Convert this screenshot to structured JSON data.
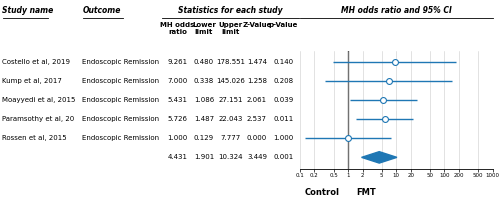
{
  "chart_data": {
    "type": "forest",
    "column_groups": [
      "Study name",
      "Outcome",
      "Statistics for each study",
      "MH odds ratio and 95% CI"
    ],
    "columns": [
      "MH odds\nratio",
      "Lower\nlimit",
      "Upper\nlimit",
      "Z-Value",
      "p-Value"
    ],
    "categories": [
      "Costello et al, 2019",
      "Kump et al, 2017",
      "Moayyedi et al, 2015",
      "Paramsothy et al, 20",
      "Rossen et al, 2015"
    ],
    "outcomes": [
      "Endoscopic Remission",
      "Endoscopic Remission",
      "Endoscopic Remission",
      "Endoscopic Remission",
      "Endoscopic Remission"
    ],
    "values": [
      9.261,
      7.0,
      5.431,
      5.726,
      1.0
    ],
    "lower": [
      0.48,
      0.338,
      1.086,
      1.487,
      0.129
    ],
    "upper": [
      178.551,
      145.026,
      27.151,
      22.043,
      7.777
    ],
    "z": [
      1.474,
      1.258,
      2.061,
      2.537,
      0.0
    ],
    "p": [
      0.14,
      0.208,
      0.039,
      0.011,
      1.0
    ],
    "summary": {
      "values": 4.431,
      "lower": 1.901,
      "upper": 10.324,
      "z": 3.449,
      "p": 0.001
    },
    "reference_x": 1,
    "direction_labels": [
      "Control",
      "FMT"
    ],
    "log": "x",
    "xlim": [
      0.1,
      1000
    ],
    "xticks": [
      0.1,
      0.2,
      0.5,
      1,
      2,
      5,
      10,
      20,
      50,
      100,
      200,
      500,
      1000
    ],
    "grid": true,
    "tick_labels": "x"
  }
}
